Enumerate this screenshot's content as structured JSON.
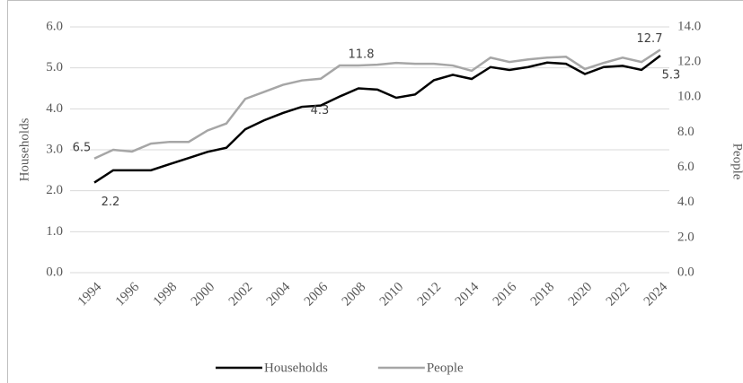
{
  "chart_data": {
    "type": "line",
    "x": [
      1994,
      1995,
      1996,
      1997,
      1998,
      1999,
      2000,
      2001,
      2002,
      2003,
      2004,
      2005,
      2006,
      2007,
      2008,
      2009,
      2010,
      2011,
      2012,
      2013,
      2014,
      2015,
      2016,
      2017,
      2018,
      2019,
      2020,
      2021,
      2022,
      2023,
      2024
    ],
    "xlim": [
      1994,
      2024
    ],
    "xticks": [
      1994,
      1996,
      1998,
      2000,
      2002,
      2004,
      2006,
      2008,
      2010,
      2012,
      2014,
      2016,
      2018,
      2020,
      2022,
      2024
    ],
    "ylabel": "Households",
    "y2label": "People",
    "ylim": [
      0,
      6
    ],
    "yticks": [
      {
        "value": 0,
        "label": "0.0"
      },
      {
        "value": 1,
        "label": "1.0"
      },
      {
        "value": 2,
        "label": "2.0"
      },
      {
        "value": 3,
        "label": "3.0"
      },
      {
        "value": 4,
        "label": "4.0"
      },
      {
        "value": 5,
        "label": "5.0"
      },
      {
        "value": 6,
        "label": "6.0"
      }
    ],
    "y2lim": [
      0,
      14
    ],
    "y2ticks": [
      {
        "value": 0,
        "label": "0.0"
      },
      {
        "value": 2,
        "label": "2.0"
      },
      {
        "value": 4,
        "label": "4.0"
      },
      {
        "value": 6,
        "label": "6.0"
      },
      {
        "value": 8,
        "label": "8.0"
      },
      {
        "value": 10,
        "label": "10.0"
      },
      {
        "value": 12,
        "label": "12.0"
      },
      {
        "value": 14,
        "label": "14.0"
      }
    ],
    "grid": true,
    "legend": "bottom",
    "series": [
      {
        "name": "Households",
        "color": "#000000",
        "values": [
          2.2,
          2.5,
          2.5,
          2.5,
          2.65,
          2.8,
          2.95,
          3.05,
          3.5,
          3.72,
          3.9,
          4.05,
          4.08,
          4.3,
          4.5,
          4.47,
          4.27,
          4.35,
          4.7,
          4.83,
          4.73,
          5.02,
          4.95,
          5.02,
          5.13,
          5.1,
          4.85,
          5.02,
          5.05,
          4.95,
          5.3
        ],
        "value_labels": [
          "2.2",
          null,
          null,
          null,
          null,
          null,
          null,
          null,
          null,
          null,
          null,
          null,
          null,
          "4.3",
          null,
          null,
          null,
          null,
          null,
          null,
          null,
          null,
          null,
          null,
          null,
          null,
          null,
          null,
          null,
          null,
          "5.3"
        ]
      },
      {
        "name": "People",
        "color": "#a6a6a6",
        "axis": "y2",
        "values": [
          6.5,
          7.0,
          6.9,
          7.35,
          7.45,
          7.45,
          8.1,
          8.5,
          9.9,
          10.3,
          10.7,
          10.95,
          11.05,
          11.8,
          11.8,
          11.85,
          11.95,
          11.9,
          11.9,
          11.8,
          11.5,
          12.25,
          12.0,
          12.15,
          12.25,
          12.3,
          11.6,
          11.95,
          12.25,
          12.0,
          12.7
        ],
        "value_labels": [
          "6.5",
          null,
          null,
          null,
          null,
          null,
          null,
          null,
          null,
          null,
          null,
          null,
          null,
          "11.8",
          null,
          null,
          null,
          null,
          null,
          null,
          null,
          null,
          null,
          null,
          null,
          null,
          null,
          null,
          null,
          null,
          "12.7"
        ]
      }
    ]
  }
}
